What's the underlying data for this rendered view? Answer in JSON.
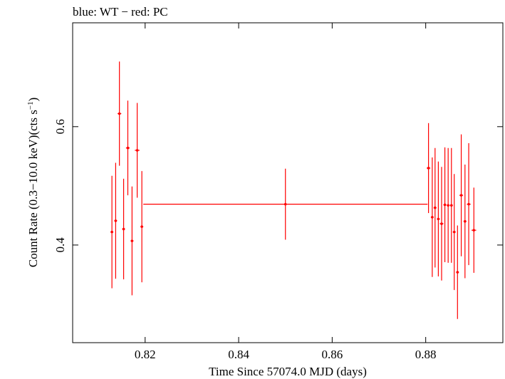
{
  "header_text": "blue: WT − red: PC",
  "chart_data": {
    "type": "scatter",
    "title": "",
    "xlabel": "Time Since 57074.0 MJD (days)",
    "ylabel_parts": [
      "Count Rate (0.3−10.0 keV)(cts s",
      "−1",
      ")"
    ],
    "xlim": [
      0.8045,
      0.8965
    ],
    "ylim": [
      0.235,
      0.7755
    ],
    "x_ticks": [
      0.82,
      0.84,
      0.86,
      0.88
    ],
    "x_tick_labels": [
      "0.82",
      "0.84",
      "0.86",
      "0.88"
    ],
    "y_ticks": [
      0.4,
      0.6
    ],
    "y_tick_labels": [
      "0.4",
      "0.6"
    ],
    "grid": false,
    "series": [
      {
        "name": "PC",
        "color": "#ff0000",
        "points": [
          {
            "x": 0.8129,
            "xerr": 0.0003,
            "y": 0.422,
            "yerr": 0.095
          },
          {
            "x": 0.8137,
            "xerr": 0.0003,
            "y": 0.441,
            "yerr": 0.098
          },
          {
            "x": 0.8145,
            "xerr": 0.0004,
            "y": 0.622,
            "yerr": 0.088
          },
          {
            "x": 0.8154,
            "xerr": 0.0003,
            "y": 0.427,
            "yerr": 0.085
          },
          {
            "x": 0.8163,
            "xerr": 0.0004,
            "y": 0.564,
            "yerr": 0.08
          },
          {
            "x": 0.8172,
            "xerr": 0.0003,
            "y": 0.407,
            "yerr": 0.092
          },
          {
            "x": 0.8183,
            "xerr": 0.0005,
            "y": 0.56,
            "yerr": 0.08
          },
          {
            "x": 0.8193,
            "xerr": 0.0003,
            "y": 0.431,
            "yerr": 0.094
          },
          {
            "x": 0.85,
            "xerr": 0.0304,
            "y": 0.469,
            "yerr": 0.06
          },
          {
            "x": 0.8806,
            "xerr": 0.0004,
            "y": 0.53,
            "yerr": 0.076
          },
          {
            "x": 0.8814,
            "xerr": 0.0003,
            "y": 0.447,
            "yerr": 0.101
          },
          {
            "x": 0.882,
            "xerr": 0.0003,
            "y": 0.463,
            "yerr": 0.101
          },
          {
            "x": 0.8827,
            "xerr": 0.0003,
            "y": 0.444,
            "yerr": 0.097
          },
          {
            "x": 0.8834,
            "xerr": 0.0004,
            "y": 0.436,
            "yerr": 0.096
          },
          {
            "x": 0.8841,
            "xerr": 0.0003,
            "y": 0.468,
            "yerr": 0.097
          },
          {
            "x": 0.8848,
            "xerr": 0.0003,
            "y": 0.467,
            "yerr": 0.097
          },
          {
            "x": 0.8855,
            "xerr": 0.0003,
            "y": 0.467,
            "yerr": 0.097
          },
          {
            "x": 0.8861,
            "xerr": 0.0003,
            "y": 0.422,
            "yerr": 0.098
          },
          {
            "x": 0.8868,
            "xerr": 0.0003,
            "y": 0.354,
            "yerr": 0.079
          },
          {
            "x": 0.8876,
            "xerr": 0.0004,
            "y": 0.484,
            "yerr": 0.103
          },
          {
            "x": 0.8884,
            "xerr": 0.0003,
            "y": 0.44,
            "yerr": 0.096
          },
          {
            "x": 0.8892,
            "xerr": 0.0004,
            "y": 0.469,
            "yerr": 0.103
          },
          {
            "x": 0.8903,
            "xerr": 0.0005,
            "y": 0.425,
            "yerr": 0.072
          }
        ]
      }
    ]
  }
}
